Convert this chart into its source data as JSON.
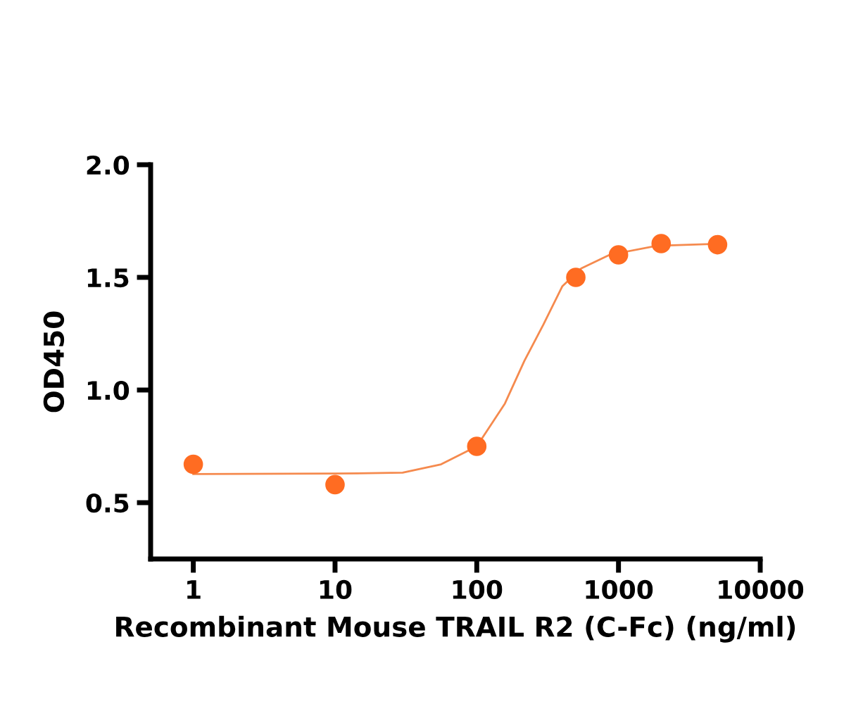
{
  "chart_data": {
    "type": "scatter",
    "xlabel": "Recombinant Mouse TRAIL R2 (C-Fc) (ng/ml)",
    "ylabel": "OD450",
    "log": "x",
    "grid": false,
    "legend": false,
    "xlim": [
      0.5,
      10000
    ],
    "xticks": [
      1,
      10,
      100,
      1000,
      10000
    ],
    "ylim": [
      0.25,
      2.0
    ],
    "yticks": [
      {
        "value": 0.5,
        "label": "0.5"
      },
      {
        "value": 1.0,
        "label": "1.0"
      },
      {
        "value": 1.5,
        "label": "1.5"
      },
      {
        "value": 2.0,
        "label": "2.0"
      }
    ],
    "series": [
      {
        "color": "#ff6c22",
        "marker": "circle",
        "x": [
          1,
          10,
          100,
          500,
          1000,
          2000,
          5000
        ],
        "values": [
          0.67,
          0.58,
          0.75,
          1.5,
          1.6,
          1.65,
          1.645
        ]
      },
      {
        "type": "line",
        "color": "#f58a4e",
        "marker": "none",
        "line_style": "solid",
        "x": [
          1,
          10,
          30,
          56,
          100,
          158,
          217,
          295,
          401,
          546,
          865,
          1862,
          5000
        ],
        "values": [
          0.627,
          0.629,
          0.633,
          0.67,
          0.75,
          0.94,
          1.13,
          1.29,
          1.46,
          1.54,
          1.6,
          1.64,
          1.649
        ]
      }
    ]
  }
}
